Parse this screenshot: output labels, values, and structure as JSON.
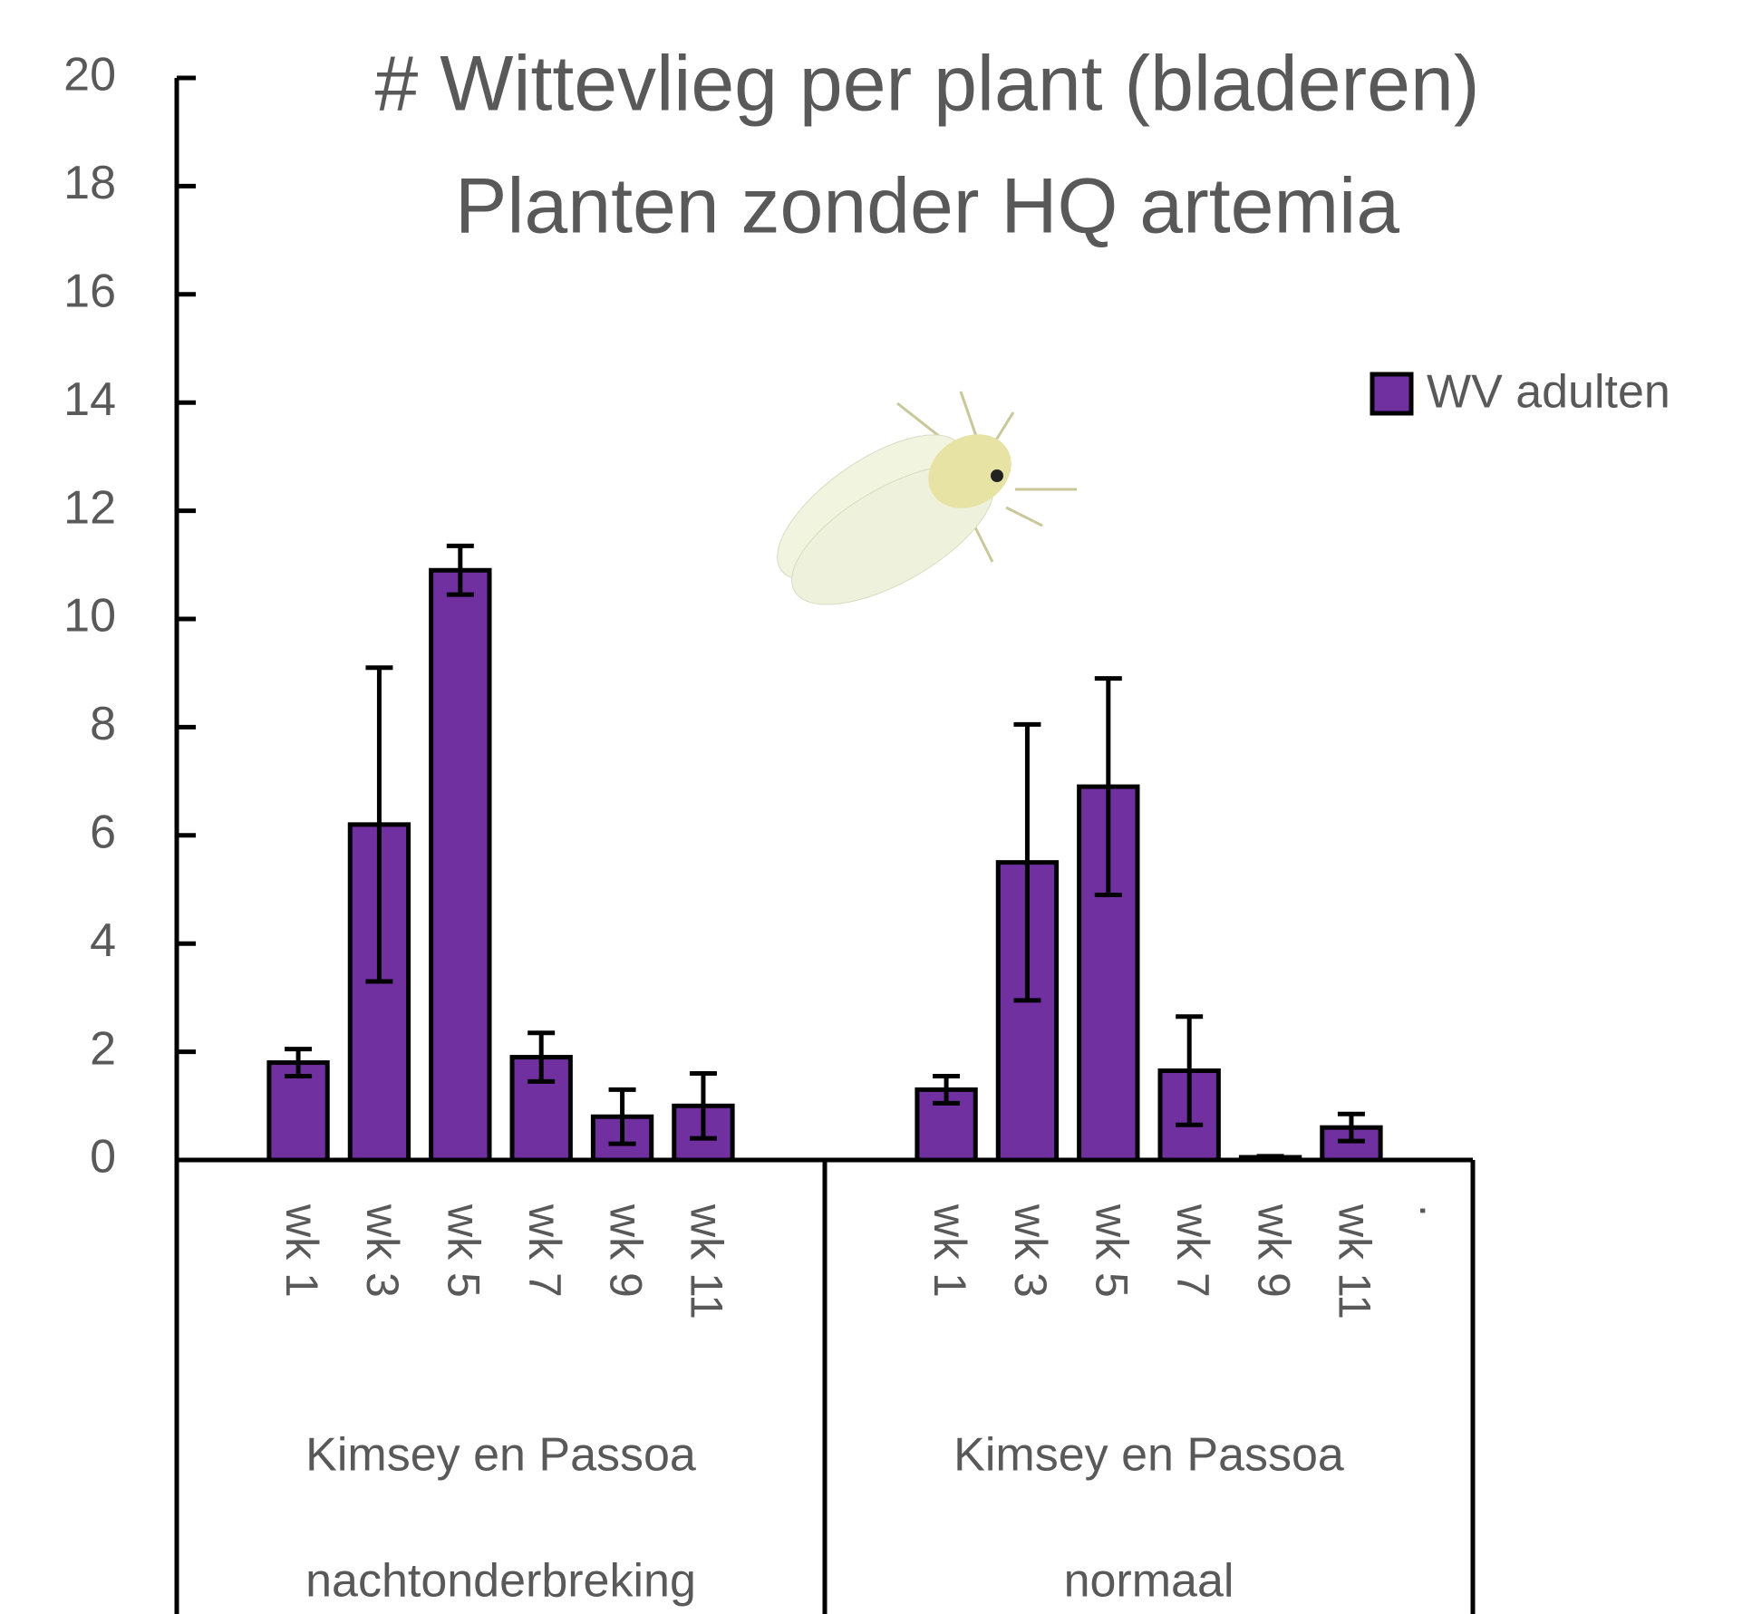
{
  "chart_data": {
    "type": "bar",
    "title": "# Wittevlieg per plant (bladeren)",
    "subtitle": "Planten zonder  HQ artemia",
    "categories": [
      null,
      "wk 1",
      "wk 3",
      "wk 5",
      "wk 7",
      "wk 9",
      "wk 11",
      null,
      null,
      "wk 1",
      "wk 3",
      "wk 5",
      "wk 7",
      "wk 9",
      "wk 11",
      "."
    ],
    "groups": [
      [
        "Kimsey en Passoa",
        "nachtonderbreking"
      ],
      [
        "Kimsey en Passoa",
        "normaal"
      ]
    ],
    "series": [
      {
        "name": "WV adulten",
        "color": "#7030a0",
        "values": [
          null,
          1.8,
          6.2,
          10.9,
          1.9,
          0.8,
          1.0,
          null,
          null,
          1.3,
          5.5,
          6.9,
          1.65,
          0.05,
          0.6,
          null
        ],
        "errors": [
          null,
          0.25,
          2.9,
          0.45,
          0.45,
          0.5,
          0.6,
          null,
          null,
          0.25,
          2.55,
          2.0,
          1.0,
          0.02,
          0.25,
          null
        ]
      }
    ],
    "ylim": [
      0,
      20
    ],
    "yticks": [
      0,
      2,
      4,
      6,
      8,
      10,
      12,
      14,
      16,
      18,
      20
    ],
    "legend": "right"
  }
}
